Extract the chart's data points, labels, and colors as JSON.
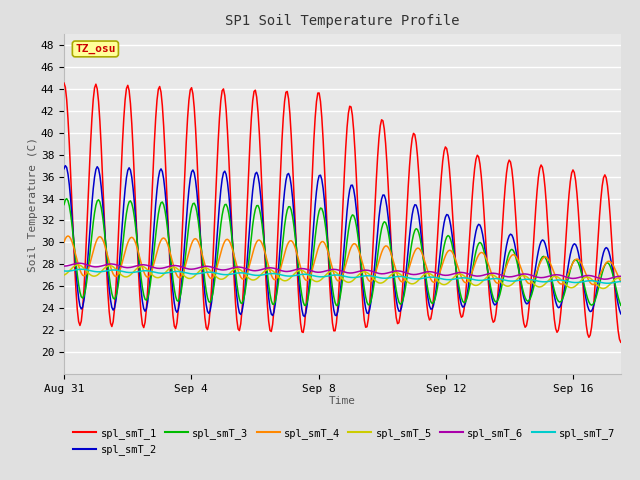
{
  "title": "SP1 Soil Temperature Profile",
  "xlabel": "Time",
  "ylabel": "Soil Temperature (C)",
  "ylim": [
    18,
    49
  ],
  "yticks": [
    20,
    22,
    24,
    26,
    28,
    30,
    32,
    34,
    36,
    38,
    40,
    42,
    44,
    46,
    48
  ],
  "bg_color": "#e0e0e0",
  "plot_bg_color": "#e8e8e8",
  "grid_color": "#ffffff",
  "series_colors": {
    "spl_smT_1": "#ff0000",
    "spl_smT_2": "#0000cc",
    "spl_smT_3": "#00bb00",
    "spl_smT_4": "#ff8800",
    "spl_smT_5": "#cccc00",
    "spl_smT_6": "#aa00aa",
    "spl_smT_7": "#00cccc"
  },
  "tz_label": "TZ_osu",
  "tz_box_bg": "#ffff99",
  "tz_box_border": "#aaaa00",
  "tz_text_color": "#cc0000",
  "xtick_labels": [
    "Aug 31",
    "Sep 4",
    "Sep 8",
    "Sep 12",
    "Sep 16"
  ],
  "xtick_positions": [
    0,
    4,
    8,
    12,
    16
  ],
  "xlim": [
    0,
    17.5
  ],
  "font_family": "monospace",
  "legend_labels": [
    "spl_smT_1",
    "spl_smT_2",
    "spl_smT_3",
    "spl_smT_4",
    "spl_smT_5",
    "spl_smT_6",
    "spl_smT_7"
  ]
}
